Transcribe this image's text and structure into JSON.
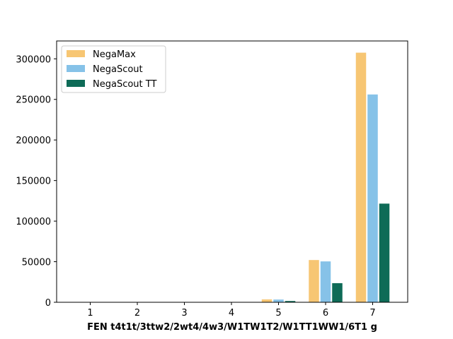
{
  "chart_data": {
    "type": "bar",
    "title": "",
    "xlabel": "FEN t4t1t/3ttw2/2wt4/4w3/W1TW1T2/W1TT1WW1/6T1 g",
    "ylabel": "",
    "categories": [
      "1",
      "2",
      "3",
      "4",
      "5",
      "6",
      "7"
    ],
    "series": [
      {
        "name": "NegaMax",
        "color": "#f7c673",
        "values": [
          0,
          0,
          0,
          0,
          4000,
          52500,
          308000
        ]
      },
      {
        "name": "NegaScout",
        "color": "#86c2e8",
        "values": [
          0,
          0,
          0,
          0,
          3800,
          50800,
          256500
        ]
      },
      {
        "name": "NegaScout TT",
        "color": "#0e6b57",
        "values": [
          0,
          0,
          0,
          0,
          2000,
          24000,
          122000
        ]
      }
    ],
    "ylim": [
      0,
      322000
    ],
    "yticks": [
      0,
      50000,
      100000,
      150000,
      200000,
      250000,
      300000
    ],
    "grid": false,
    "legend_position": "top-left"
  }
}
